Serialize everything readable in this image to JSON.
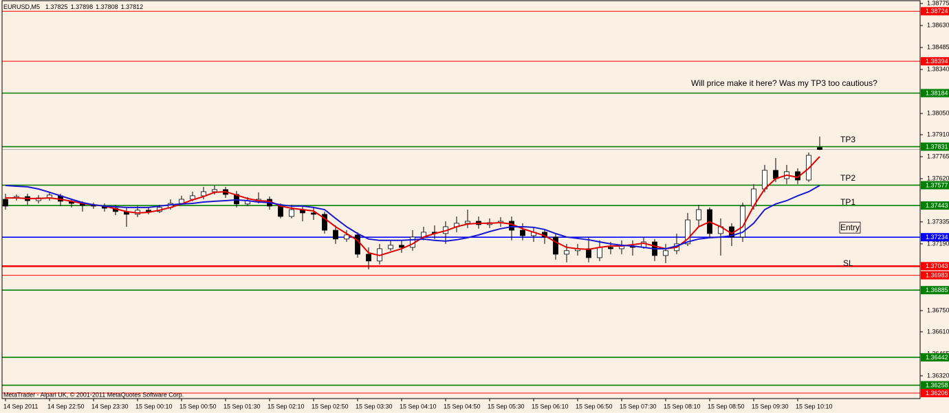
{
  "chart_data": {
    "type": "candlestick",
    "symbol": "EURUSD,M5",
    "footer": "MetaTrader - Alpari UK, © 2001-2011 MetaQuotes Software Corp.",
    "categories": [
      "14 Sep 2011",
      null,
      null,
      null,
      "14 Sep 22:50",
      null,
      null,
      null,
      "14 Sep 23:30",
      null,
      null,
      null,
      "15 Sep 00:10",
      null,
      null,
      null,
      "15 Sep 00:50",
      null,
      null,
      null,
      "15 Sep 01:30",
      null,
      null,
      null,
      "15 Sep 02:10",
      null,
      null,
      null,
      "15 Sep 02:50",
      null,
      null,
      null,
      "15 Sep 03:30",
      null,
      null,
      null,
      "15 Sep 04:10",
      null,
      null,
      null,
      "15 Sep 04:50",
      null,
      null,
      null,
      "15 Sep 05:30",
      null,
      null,
      null,
      "15 Sep 06:10",
      null,
      null,
      null,
      "15 Sep 06:50",
      null,
      null,
      null,
      "15 Sep 07:30",
      null,
      null,
      null,
      "15 Sep 08:10",
      null,
      null,
      null,
      "15 Sep 08:50",
      null,
      null,
      null,
      "15 Sep 09:30",
      null,
      null,
      null,
      "15 Sep 10:10",
      null,
      null
    ],
    "open": [
      1.37484,
      1.37493,
      1.37502,
      1.37475,
      1.37493,
      1.37507,
      1.37471,
      1.37457,
      1.37444,
      1.37439,
      1.37425,
      1.37403,
      1.37385,
      1.37412,
      1.37403,
      1.3743,
      1.37457,
      1.37484,
      1.37507,
      1.37534,
      1.37548,
      1.37516,
      1.37453,
      1.37475,
      1.37484,
      1.37439,
      1.37371,
      1.37416,
      1.37394,
      1.37385,
      1.3728,
      1.37222,
      1.37249,
      1.37122,
      1.37077,
      1.37158,
      1.37181,
      1.37167,
      1.37235,
      1.37267,
      1.37258,
      1.37303,
      1.37326,
      1.37339,
      1.37317,
      1.3733,
      1.37339,
      1.3728,
      1.37244,
      1.37267,
      1.37235,
      1.37122,
      1.37145,
      1.37158,
      1.37099,
      1.37167,
      1.37158,
      1.37176,
      1.37167,
      1.37203,
      1.37113,
      1.37145,
      1.3719,
      1.37348,
      1.37416,
      1.37258,
      1.37303,
      1.37235,
      1.37439,
      1.37552,
      1.37675,
      1.3762,
      1.37666,
      1.37611,
      1.37825
    ],
    "high": [
      1.37521,
      1.37516,
      1.37521,
      1.37512,
      1.3753,
      1.37521,
      1.37489,
      1.37471,
      1.37462,
      1.37457,
      1.37448,
      1.37425,
      1.37439,
      1.3743,
      1.37448,
      1.37484,
      1.37507,
      1.37534,
      1.37566,
      1.37575,
      1.37566,
      1.37539,
      1.37498,
      1.3753,
      1.37502,
      1.37457,
      1.37448,
      1.37439,
      1.3743,
      1.37403,
      1.37312,
      1.3728,
      1.37267,
      1.37167,
      1.3719,
      1.37213,
      1.37213,
      1.3728,
      1.37303,
      1.37312,
      1.37339,
      1.37371,
      1.37416,
      1.37371,
      1.37358,
      1.37367,
      1.37371,
      1.37326,
      1.37303,
      1.37285,
      1.37258,
      1.3719,
      1.3719,
      1.37235,
      1.37213,
      1.37203,
      1.37213,
      1.37213,
      1.37235,
      1.37222,
      1.3719,
      1.37258,
      1.37394,
      1.37448,
      1.3743,
      1.37358,
      1.37326,
      1.37462,
      1.37584,
      1.37711,
      1.37756,
      1.37711,
      1.37688,
      1.37792,
      1.37898
    ],
    "low": [
      1.37416,
      1.37475,
      1.37448,
      1.37457,
      1.37475,
      1.37439,
      1.3743,
      1.37403,
      1.37421,
      1.37403,
      1.3738,
      1.37303,
      1.37367,
      1.37385,
      1.37394,
      1.37416,
      1.37448,
      1.37471,
      1.37484,
      1.37516,
      1.37493,
      1.3743,
      1.37439,
      1.37457,
      1.37416,
      1.37358,
      1.37358,
      1.37339,
      1.37348,
      1.37258,
      1.3719,
      1.37203,
      1.37099,
      1.37022,
      1.37054,
      1.37145,
      1.37131,
      1.37145,
      1.37213,
      1.37222,
      1.3719,
      1.37267,
      1.37294,
      1.3729,
      1.37294,
      1.37303,
      1.37213,
      1.37213,
      1.37203,
      1.3719,
      1.37086,
      1.37068,
      1.37113,
      1.37068,
      1.37077,
      1.37122,
      1.37122,
      1.37113,
      1.37158,
      1.37077,
      1.37063,
      1.37122,
      1.37176,
      1.37303,
      1.37235,
      1.37113,
      1.37176,
      1.37203,
      1.37416,
      1.3753,
      1.37598,
      1.37584,
      1.37584,
      1.37598,
      1.37808
    ],
    "close": [
      1.37439,
      1.37502,
      1.37475,
      1.37493,
      1.37512,
      1.37471,
      1.37457,
      1.37444,
      1.37439,
      1.37425,
      1.37403,
      1.37385,
      1.37412,
      1.37403,
      1.3743,
      1.37457,
      1.37484,
      1.37507,
      1.37534,
      1.37548,
      1.37516,
      1.37453,
      1.37475,
      1.37484,
      1.37439,
      1.37371,
      1.37416,
      1.37394,
      1.37385,
      1.3728,
      1.37222,
      1.37249,
      1.37122,
      1.37077,
      1.37158,
      1.37181,
      1.37167,
      1.37235,
      1.37267,
      1.37258,
      1.37303,
      1.37326,
      1.37339,
      1.37317,
      1.3733,
      1.37339,
      1.3728,
      1.37244,
      1.37267,
      1.37235,
      1.37122,
      1.37145,
      1.37158,
      1.37099,
      1.37167,
      1.37158,
      1.37176,
      1.37167,
      1.37203,
      1.37113,
      1.37145,
      1.3719,
      1.37348,
      1.37416,
      1.37258,
      1.37303,
      1.37235,
      1.37439,
      1.37552,
      1.37675,
      1.3762,
      1.37666,
      1.37611,
      1.37774,
      1.37812
    ],
    "up_color": "#ffffff",
    "down_color": "#000000",
    "series": [
      {
        "color": "#e00000",
        "values": [
          1.37493,
          1.37493,
          1.37489,
          1.37489,
          1.37493,
          1.37484,
          1.37471,
          1.37457,
          1.37448,
          1.37439,
          1.37421,
          1.37403,
          1.37394,
          1.37398,
          1.37412,
          1.3743,
          1.37453,
          1.3748,
          1.37502,
          1.3753,
          1.37534,
          1.37512,
          1.37489,
          1.37475,
          1.37471,
          1.37439,
          1.37425,
          1.37416,
          1.37407,
          1.37358,
          1.37303,
          1.37258,
          1.37213,
          1.37131,
          1.37113,
          1.37136,
          1.37158,
          1.3719,
          1.37235,
          1.37258,
          1.37276,
          1.37303,
          1.37321,
          1.37326,
          1.37326,
          1.3733,
          1.37321,
          1.3729,
          1.37267,
          1.37244,
          1.37203,
          1.37167,
          1.37158,
          1.37154,
          1.37167,
          1.37176,
          1.37176,
          1.37185,
          1.37194,
          1.37176,
          1.37158,
          1.37167,
          1.37222,
          1.37303,
          1.37335,
          1.37303,
          1.37258,
          1.37303,
          1.37439,
          1.37552,
          1.3762,
          1.37643,
          1.37629,
          1.37688,
          1.37765
        ]
      },
      {
        "color": "#1818d0",
        "values": [
          1.37575,
          1.3757,
          1.37566,
          1.37552,
          1.3753,
          1.37507,
          1.37484,
          1.37462,
          1.37448,
          1.37439,
          1.37435,
          1.3743,
          1.3743,
          1.3743,
          1.37439,
          1.37448,
          1.37453,
          1.37457,
          1.37466,
          1.37471,
          1.37475,
          1.3748,
          1.37475,
          1.37466,
          1.37462,
          1.37448,
          1.37439,
          1.37439,
          1.3743,
          1.37416,
          1.37358,
          1.37303,
          1.37258,
          1.37222,
          1.37213,
          1.37213,
          1.37213,
          1.37217,
          1.37222,
          1.37213,
          1.37208,
          1.37217,
          1.37231,
          1.37249,
          1.37271,
          1.3729,
          1.37303,
          1.37303,
          1.37299,
          1.37285,
          1.37258,
          1.37235,
          1.37226,
          1.37217,
          1.37203,
          1.3719,
          1.37181,
          1.37176,
          1.37167,
          1.37158,
          1.37158,
          1.37176,
          1.37203,
          1.37222,
          1.37231,
          1.37235,
          1.37244,
          1.37267,
          1.37326,
          1.37416,
          1.37453,
          1.37475,
          1.37507,
          1.37534,
          1.37575
        ]
      }
    ],
    "ylim": [
      1.3617,
      1.38798
    ],
    "yticks": [
      1.38775,
      {
        "value": 1.3863,
        "label": "1.38630"
      },
      1.38485,
      {
        "value": 1.3834,
        "label": "1.38340"
      },
      {
        "value": 1.3805,
        "label": "1.38050"
      },
      {
        "value": 1.3791,
        "label": "1.37910"
      },
      1.37765,
      {
        "value": 1.3762,
        "label": "1.37620"
      },
      1.37335,
      {
        "value": 1.3719,
        "label": "1.37190"
      },
      {
        "value": 1.3675,
        "label": "1.36750"
      },
      {
        "value": 1.3661,
        "label": "1.36610"
      },
      1.36465,
      {
        "value": 1.3632,
        "label": "1.36320"
      }
    ],
    "levels": [
      {
        "price": 1.38724,
        "color": "#ff0000"
      },
      {
        "price": 1.38394,
        "color": "#ff0000"
      },
      {
        "price": 1.38184,
        "color": "#008000"
      },
      {
        "price": 1.37831,
        "color": "#008000"
      },
      {
        "price": 1.37577,
        "color": "#008000"
      },
      {
        "price": 1.37443,
        "color": "#008000"
      },
      {
        "price": 1.37234,
        "color": "#0000ff"
      },
      {
        "price": 1.37043,
        "color": "#ff0000"
      },
      {
        "price": 1.36983,
        "color": "#ff0000"
      },
      {
        "price": 1.36885,
        "color": "#008000"
      },
      {
        "price": 1.36442,
        "color": "#008000"
      },
      {
        "price": 1.36258,
        "color": "#008000"
      },
      {
        "price": 1.36206,
        "color": "#ff0000"
      }
    ],
    "annotations": [
      "Will price make it here? Was my TP3 too cautious?",
      "TP3",
      "TP2",
      "TP1",
      "Entry",
      "SL"
    ]
  }
}
